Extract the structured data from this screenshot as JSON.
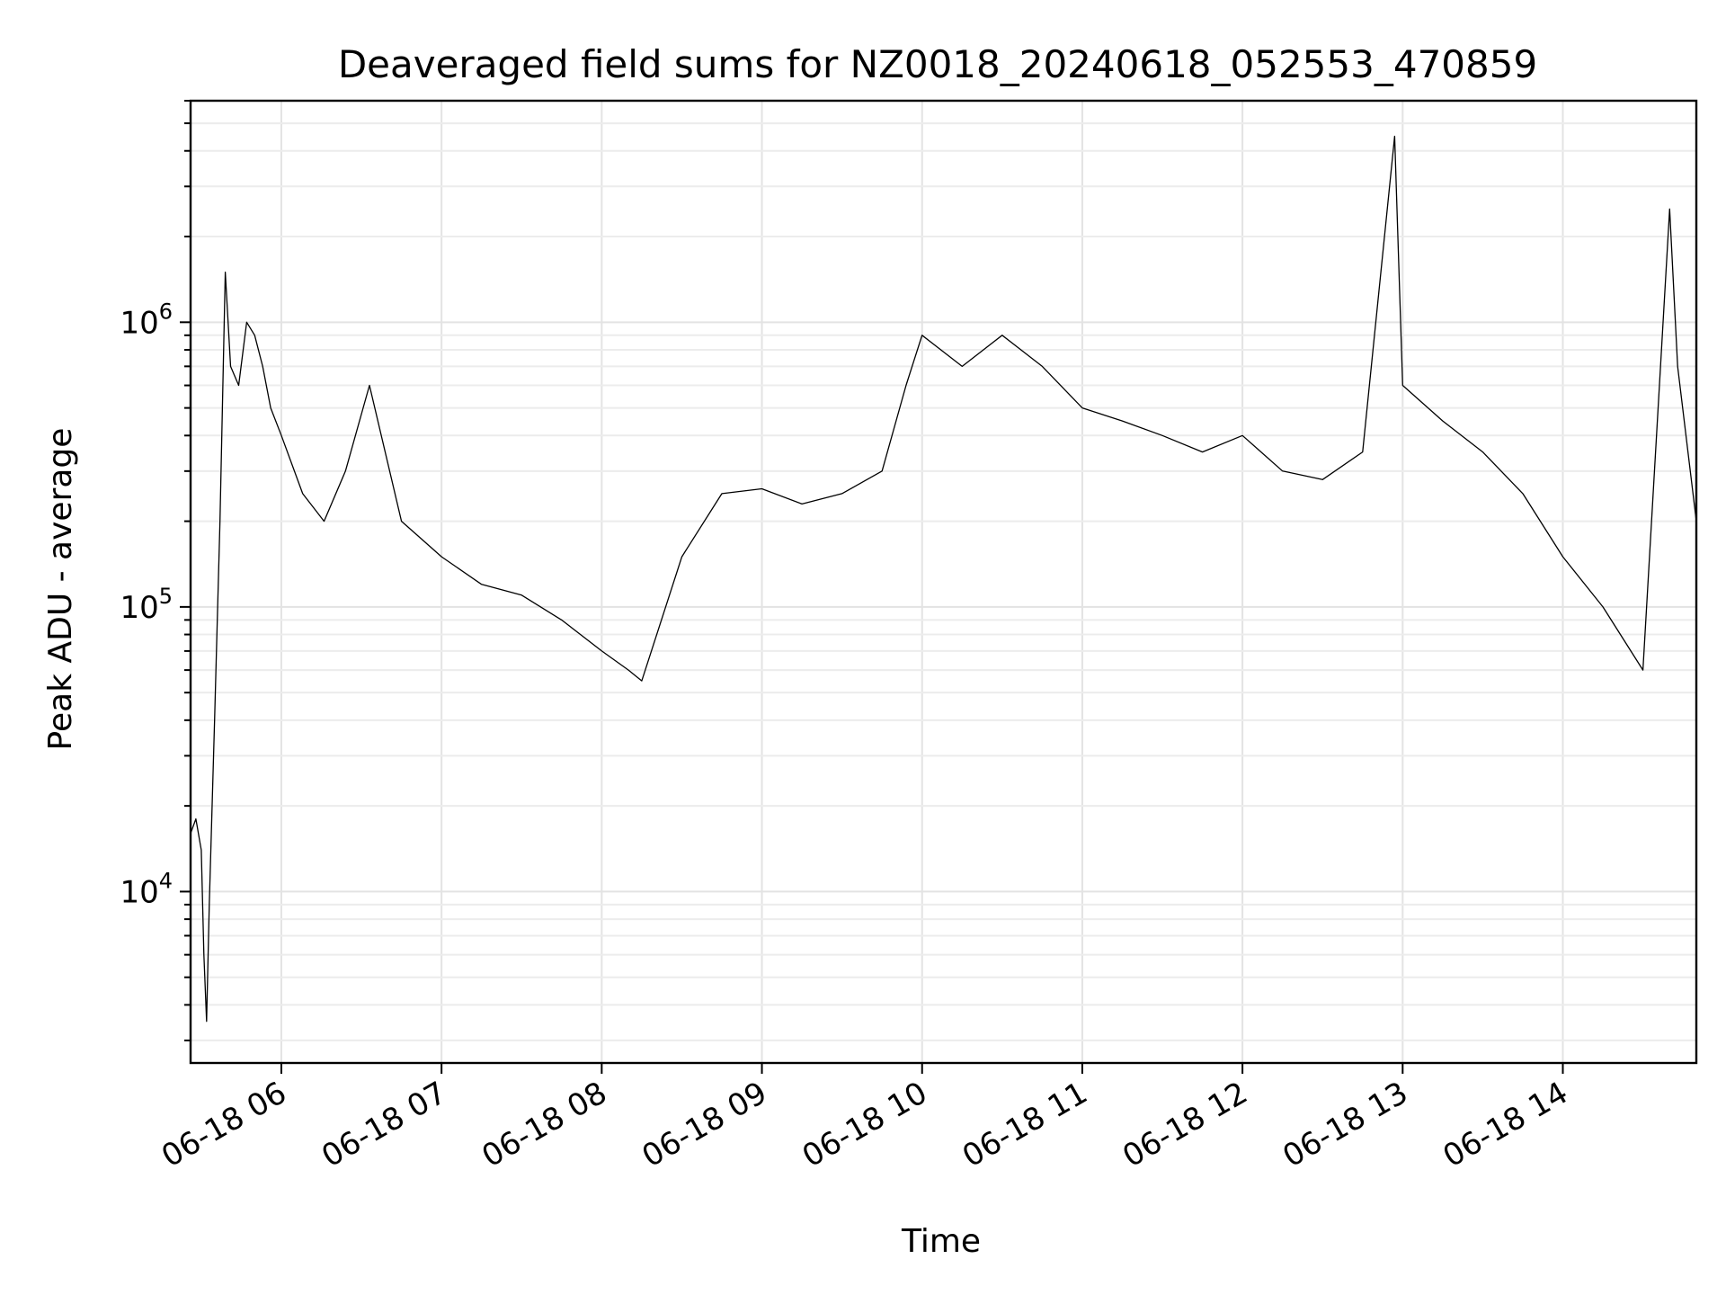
{
  "chart_data": {
    "type": "line",
    "title": "Deaveraged field sums for NZ0018_20240618_052553_470859",
    "xlabel": "Time",
    "ylabel": "Peak ADU - average",
    "yscale": "log",
    "grid": true,
    "xlim": [
      "2024-06-18 05:26",
      "2024-06-18 14:50"
    ],
    "ylim": [
      2500,
      6000000
    ],
    "x_ticks": [
      "06-18 06",
      "06-18 07",
      "06-18 08",
      "06-18 09",
      "06-18 10",
      "06-18 11",
      "06-18 12",
      "06-18 13",
      "06-18 14"
    ],
    "y_ticks": [
      {
        "base": "10",
        "exp": "4",
        "value": 10000
      },
      {
        "base": "10",
        "exp": "5",
        "value": 100000
      },
      {
        "base": "10",
        "exp": "6",
        "value": 1000000
      }
    ],
    "line_color": "#000000",
    "series": [
      {
        "x": [
          "2024-06-18 05:26",
          "2024-06-18 05:28",
          "2024-06-18 05:30",
          "2024-06-18 05:31",
          "2024-06-18 05:32",
          "2024-06-18 05:33",
          "2024-06-18 05:35",
          "2024-06-18 05:37",
          "2024-06-18 05:39",
          "2024-06-18 05:41",
          "2024-06-18 05:44",
          "2024-06-18 05:47",
          "2024-06-18 05:50",
          "2024-06-18 05:53",
          "2024-06-18 05:56",
          "2024-06-18 06:00",
          "2024-06-18 06:08",
          "2024-06-18 06:16",
          "2024-06-18 06:24",
          "2024-06-18 06:33",
          "2024-06-18 06:45",
          "2024-06-18 07:00",
          "2024-06-18 07:15",
          "2024-06-18 07:30",
          "2024-06-18 07:45",
          "2024-06-18 08:00",
          "2024-06-18 08:10",
          "2024-06-18 08:15",
          "2024-06-18 08:30",
          "2024-06-18 08:45",
          "2024-06-18 09:00",
          "2024-06-18 09:15",
          "2024-06-18 09:30",
          "2024-06-18 09:45",
          "2024-06-18 09:54",
          "2024-06-18 10:00",
          "2024-06-18 10:15",
          "2024-06-18 10:30",
          "2024-06-18 10:45",
          "2024-06-18 11:00",
          "2024-06-18 11:15",
          "2024-06-18 11:30",
          "2024-06-18 11:45",
          "2024-06-18 12:00",
          "2024-06-18 12:15",
          "2024-06-18 12:30",
          "2024-06-18 12:45",
          "2024-06-18 12:57",
          "2024-06-18 13:00",
          "2024-06-18 13:15",
          "2024-06-18 13:30",
          "2024-06-18 13:45",
          "2024-06-18 14:00",
          "2024-06-18 14:15",
          "2024-06-18 14:30",
          "2024-06-18 14:40",
          "2024-06-18 14:43",
          "2024-06-18 14:50"
        ],
        "values": [
          16000,
          18000,
          14000,
          6000,
          3500,
          9000,
          40000,
          200000,
          1500000,
          700000,
          600000,
          1000000,
          900000,
          700000,
          500000,
          400000,
          250000,
          200000,
          300000,
          600000,
          200000,
          150000,
          120000,
          110000,
          90000,
          70000,
          60000,
          55000,
          150000,
          250000,
          260000,
          230000,
          250000,
          300000,
          600000,
          900000,
          700000,
          900000,
          700000,
          500000,
          450000,
          400000,
          350000,
          400000,
          300000,
          280000,
          350000,
          4500000,
          600000,
          450000,
          350000,
          250000,
          150000,
          100000,
          60000,
          2500000,
          700000,
          200000
        ]
      }
    ]
  }
}
